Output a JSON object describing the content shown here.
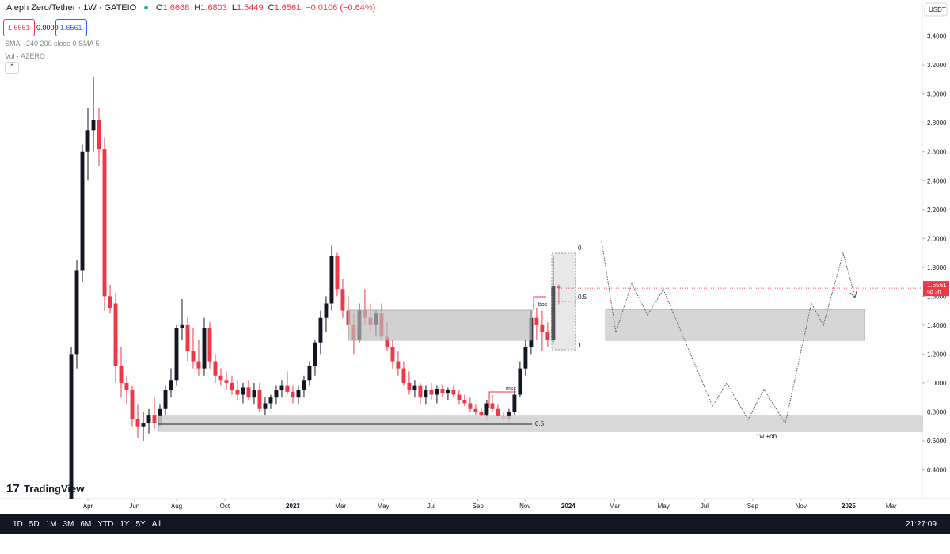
{
  "header": {
    "symbol": "Aleph Zero/Tether · 1W · GATEIO",
    "ohlc": [
      {
        "key": "O",
        "value": "1.6668"
      },
      {
        "key": "H",
        "value": "1.6803"
      },
      {
        "key": "L",
        "value": "1.5449"
      },
      {
        "key": "C",
        "value": "1.6561"
      }
    ],
    "change": "−0.0106 (−0.64%)",
    "sell": "1.6561",
    "spread": "0.0000",
    "buy": "1.6561",
    "indicators": [
      "SMA · 240 200 close 0 SMA 5",
      "Vol · AZERO"
    ],
    "currency": "USDT"
  },
  "chart_data": {
    "type": "candlestick",
    "up_color": "#131722",
    "down_color": "#f23645",
    "xlim": [
      -12.86,
      153.6
    ],
    "xticks": [
      {
        "value": 3,
        "label": "Apr"
      },
      {
        "value": 11.4,
        "label": "Jun"
      },
      {
        "value": 19,
        "label": "Aug"
      },
      {
        "value": 27.7,
        "label": "Oct"
      },
      {
        "value": 40,
        "label": "2023"
      },
      {
        "value": 48.6,
        "label": "Mar"
      },
      {
        "value": 56.3,
        "label": "May"
      },
      {
        "value": 65,
        "label": "Jul"
      },
      {
        "value": 73.4,
        "label": "Sep"
      },
      {
        "value": 81.9,
        "label": "Nov"
      },
      {
        "value": 89.7,
        "label": "2024"
      },
      {
        "value": 98.1,
        "label": "Mar"
      },
      {
        "value": 106.9,
        "label": "May"
      },
      {
        "value": 114.3,
        "label": "Jul"
      },
      {
        "value": 123,
        "label": "Sep"
      },
      {
        "value": 131.7,
        "label": "Nov"
      },
      {
        "value": 140.3,
        "label": "2025"
      },
      {
        "value": 148,
        "label": "Mar"
      }
    ],
    "ylim": [
      0.2,
      3.65
    ],
    "yticks": [
      {
        "value": 0.4,
        "label": "0.4000"
      },
      {
        "value": 0.6,
        "label": "0.6000"
      },
      {
        "value": 0.8,
        "label": "0.8000"
      },
      {
        "value": 1,
        "label": "1.0000"
      },
      {
        "value": 1.2,
        "label": "1.2000"
      },
      {
        "value": 1.4,
        "label": "1.4000"
      },
      {
        "value": 1.6,
        "label": "1.6000"
      },
      {
        "value": 1.8,
        "label": "1.8000"
      },
      {
        "value": 2,
        "label": "2.0000"
      },
      {
        "value": 2.2,
        "label": "2.2000"
      },
      {
        "value": 2.4,
        "label": "2.4000"
      },
      {
        "value": 2.6,
        "label": "2.6000"
      },
      {
        "value": 2.8,
        "label": "2.8000"
      },
      {
        "value": 3,
        "label": "3.0000"
      },
      {
        "value": 3.2,
        "label": "3.2000"
      },
      {
        "value": 3.4,
        "label": "3.4000"
      }
    ],
    "open": [
      0.2,
      1.2,
      1.78,
      2.6,
      2.75,
      2.82,
      2.62,
      1.6,
      1.55,
      1.12,
      1.0,
      0.95,
      0.75,
      0.7,
      0.72,
      0.78,
      0.72,
      0.82,
      0.95,
      1.02,
      1.38,
      1.4,
      1.22,
      1.15,
      1.1,
      1.38,
      1.15,
      1.05,
      1.02,
      1.0,
      0.95,
      0.92,
      0.97,
      0.9,
      0.95,
      0.82,
      0.86,
      0.9,
      0.95,
      0.98,
      0.94,
      0.9,
      0.95,
      1.02,
      1.12,
      1.28,
      1.45,
      1.55,
      1.88,
      1.65,
      1.5,
      1.4,
      1.3,
      1.5,
      1.45,
      1.4,
      1.48,
      1.32,
      1.25,
      1.15,
      1.1,
      1.0,
      0.95,
      0.98,
      0.9,
      0.95,
      0.92,
      0.96,
      0.93,
      0.95,
      0.92,
      0.88,
      0.86,
      0.82,
      0.8,
      0.78,
      0.86,
      0.82,
      0.77,
      0.75,
      0.8,
      0.92,
      1.1,
      1.25,
      1.45,
      1.4,
      1.35,
      1.3,
      1.6668
    ],
    "high": [
      1.25,
      1.85,
      2.65,
      2.9,
      3.12,
      2.9,
      2.7,
      1.68,
      1.62,
      1.25,
      1.05,
      0.98,
      0.85,
      0.8,
      0.82,
      0.9,
      0.85,
      0.98,
      1.1,
      1.4,
      1.58,
      1.45,
      1.38,
      1.3,
      1.45,
      1.42,
      1.2,
      1.1,
      1.08,
      1.05,
      1.02,
      1.0,
      1.02,
      1.0,
      1.0,
      0.9,
      0.92,
      0.98,
      1.02,
      1.08,
      0.98,
      0.98,
      1.05,
      1.15,
      1.3,
      1.5,
      1.6,
      1.95,
      1.9,
      1.72,
      1.6,
      1.48,
      1.55,
      1.65,
      1.55,
      1.5,
      1.55,
      1.42,
      1.3,
      1.22,
      1.15,
      1.08,
      1.02,
      1.0,
      0.98,
      1.0,
      0.98,
      0.99,
      0.97,
      0.98,
      0.95,
      0.92,
      0.9,
      0.85,
      0.83,
      0.88,
      0.92,
      0.85,
      0.8,
      0.82,
      0.95,
      1.15,
      1.3,
      1.5,
      1.52,
      1.5,
      1.42,
      1.88,
      1.6803
    ],
    "low": [
      0.15,
      1.1,
      1.7,
      2.4,
      2.6,
      2.5,
      1.5,
      1.48,
      1.0,
      0.9,
      0.85,
      0.7,
      0.62,
      0.6,
      0.65,
      0.68,
      0.7,
      0.78,
      0.9,
      0.98,
      1.3,
      1.15,
      1.1,
      1.05,
      1.05,
      1.1,
      1.0,
      0.98,
      0.95,
      0.92,
      0.88,
      0.86,
      0.88,
      0.85,
      0.8,
      0.78,
      0.82,
      0.85,
      0.9,
      0.92,
      0.86,
      0.85,
      0.9,
      0.98,
      1.05,
      1.2,
      1.35,
      1.5,
      1.6,
      1.45,
      1.35,
      1.2,
      1.28,
      1.4,
      1.35,
      1.32,
      1.3,
      1.22,
      1.1,
      1.05,
      0.98,
      0.92,
      0.9,
      0.85,
      0.85,
      0.88,
      0.86,
      0.9,
      0.88,
      0.9,
      0.85,
      0.84,
      0.8,
      0.78,
      0.76,
      0.74,
      0.8,
      0.75,
      0.73,
      0.73,
      0.78,
      0.9,
      1.05,
      1.2,
      1.3,
      1.22,
      1.25,
      1.28,
      1.5449
    ],
    "close": [
      1.2,
      1.78,
      2.6,
      2.75,
      2.82,
      2.62,
      1.6,
      1.52,
      1.12,
      1.0,
      0.95,
      0.75,
      0.7,
      0.72,
      0.78,
      0.72,
      0.82,
      0.95,
      1.02,
      1.38,
      1.4,
      1.22,
      1.15,
      1.1,
      1.38,
      1.15,
      1.05,
      1.02,
      1.0,
      0.95,
      0.92,
      0.97,
      0.9,
      0.95,
      0.82,
      0.86,
      0.9,
      0.95,
      0.98,
      0.94,
      0.9,
      0.95,
      1.02,
      1.12,
      1.28,
      1.45,
      1.55,
      1.88,
      1.65,
      1.5,
      1.4,
      1.3,
      1.5,
      1.45,
      1.4,
      1.48,
      1.32,
      1.25,
      1.15,
      1.1,
      1.0,
      0.95,
      0.98,
      0.9,
      0.95,
      0.92,
      0.96,
      0.93,
      0.95,
      0.92,
      0.88,
      0.86,
      0.82,
      0.8,
      0.78,
      0.86,
      0.82,
      0.77,
      0.75,
      0.8,
      0.92,
      1.1,
      1.25,
      1.45,
      1.4,
      1.35,
      1.3,
      1.67,
      1.6561
    ],
    "last_price": {
      "label": "1.6561",
      "countdown": "6d 3h"
    },
    "annotations": {
      "fib": [
        "0",
        "0.5",
        "1"
      ],
      "bos": "bos",
      "mss": "mss",
      "ob_mid": "0.5",
      "ob": "1w +ob"
    }
  },
  "footer": {
    "ranges": [
      "1D",
      "5D",
      "1M",
      "3M",
      "6M",
      "YTD",
      "1Y",
      "5Y",
      "All"
    ],
    "clock": "21:27:09 (UTC)",
    "brand": "TradingView"
  }
}
